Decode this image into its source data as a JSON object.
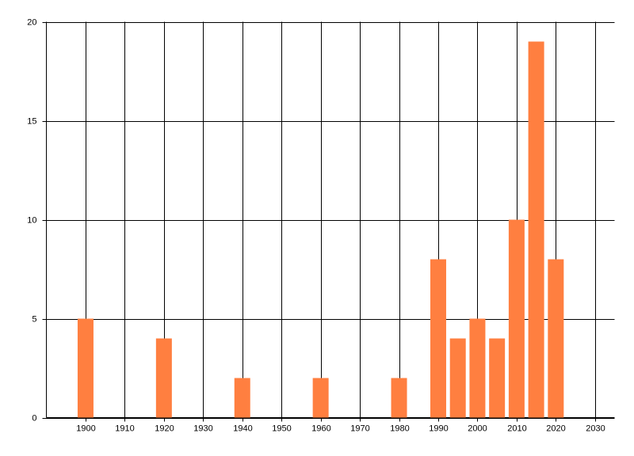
{
  "chart_data": {
    "type": "bar",
    "x": [
      1900,
      1920,
      1940,
      1960,
      1980,
      1990,
      1995,
      2000,
      2005,
      2010,
      2015,
      2020
    ],
    "values": [
      5,
      4,
      2,
      2,
      2,
      8,
      4,
      5,
      4,
      10,
      19,
      8
    ],
    "color": "#ff7f40",
    "xlim": [
      1890,
      2035
    ],
    "xticks": [
      1900,
      1910,
      1920,
      1930,
      1940,
      1950,
      1960,
      1970,
      1980,
      1990,
      2000,
      2010,
      2020,
      2030
    ],
    "ylim": [
      0,
      20
    ],
    "yticks": [
      0,
      5,
      10,
      15,
      20
    ],
    "grid": true
  }
}
